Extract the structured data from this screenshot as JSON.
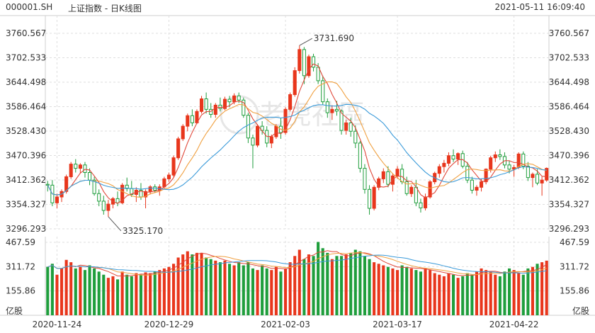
{
  "header": {
    "code": "000001.SH",
    "name": "上证指数 - 日K线图",
    "datetime": "2021-05-11 16:09:40"
  },
  "watermark": "老虎社區",
  "colors": {
    "up": "#e8361c",
    "down": "#1f9e3c",
    "ma5": "#e0483a",
    "ma10": "#f0a040",
    "ma20": "#3a9ad9",
    "grid": "#dedede"
  },
  "chart_data": [
    {
      "type": "candlestick",
      "name": "price",
      "y_tick_labels": [
        "3760.567",
        "3702.533",
        "3644.498",
        "3586.464",
        "3528.430",
        "3470.396",
        "3412.362",
        "3354.327",
        "3296.293"
      ],
      "ylim": [
        3296.293,
        3760.567
      ],
      "annotations": [
        {
          "label": "3731.690",
          "index": 54,
          "value": 3731.69
        },
        {
          "label": "3325.170",
          "index": 13,
          "value": 3325.17
        }
      ],
      "x_tick_labels": [
        {
          "label": "2020-11-24",
          "index": 2
        },
        {
          "label": "2020-12-29",
          "index": 26
        },
        {
          "label": "2021-02-03",
          "index": 51
        },
        {
          "label": "2021-03-17",
          "index": 75
        },
        {
          "label": "2021-04-22",
          "index": 100
        }
      ],
      "ohlc": [
        [
          3402,
          3410,
          3385,
          3400
        ],
        [
          3400,
          3412,
          3350,
          3358
        ],
        [
          3358,
          3380,
          3345,
          3372
        ],
        [
          3372,
          3390,
          3360,
          3385
        ],
        [
          3385,
          3425,
          3380,
          3420
        ],
        [
          3420,
          3455,
          3415,
          3450
        ],
        [
          3450,
          3462,
          3430,
          3440
        ],
        [
          3440,
          3452,
          3428,
          3448
        ],
        [
          3448,
          3455,
          3418,
          3430
        ],
        [
          3430,
          3440,
          3400,
          3412
        ],
        [
          3412,
          3420,
          3375,
          3380
        ],
        [
          3380,
          3390,
          3350,
          3362
        ],
        [
          3362,
          3375,
          3330,
          3340
        ],
        [
          3340,
          3365,
          3325,
          3355
        ],
        [
          3355,
          3372,
          3345,
          3368
        ],
        [
          3368,
          3385,
          3350,
          3358
        ],
        [
          3358,
          3405,
          3355,
          3400
        ],
        [
          3400,
          3418,
          3385,
          3392
        ],
        [
          3392,
          3410,
          3372,
          3378
        ],
        [
          3378,
          3395,
          3360,
          3388
        ],
        [
          3388,
          3405,
          3365,
          3372
        ],
        [
          3372,
          3390,
          3345,
          3385
        ],
        [
          3385,
          3400,
          3378,
          3396
        ],
        [
          3396,
          3402,
          3382,
          3388
        ],
        [
          3388,
          3402,
          3375,
          3396
        ],
        [
          3396,
          3420,
          3390,
          3415
        ],
        [
          3415,
          3430,
          3408,
          3424
        ],
        [
          3424,
          3470,
          3420,
          3465
        ],
        [
          3465,
          3515,
          3460,
          3510
        ],
        [
          3510,
          3545,
          3505,
          3540
        ],
        [
          3540,
          3570,
          3528,
          3565
        ],
        [
          3565,
          3580,
          3540,
          3548
        ],
        [
          3548,
          3580,
          3545,
          3575
        ],
        [
          3575,
          3612,
          3570,
          3605
        ],
        [
          3605,
          3620,
          3570,
          3580
        ],
        [
          3580,
          3595,
          3560,
          3568
        ],
        [
          3568,
          3595,
          3560,
          3590
        ],
        [
          3590,
          3608,
          3575,
          3582
        ],
        [
          3582,
          3610,
          3578,
          3604
        ],
        [
          3604,
          3612,
          3585,
          3598
        ],
        [
          3598,
          3618,
          3592,
          3612
        ],
        [
          3612,
          3620,
          3595,
          3602
        ],
        [
          3602,
          3608,
          3560,
          3566
        ],
        [
          3566,
          3572,
          3500,
          3512
        ],
        [
          3512,
          3520,
          3440,
          3495
        ],
        [
          3495,
          3545,
          3490,
          3540
        ],
        [
          3540,
          3552,
          3520,
          3530
        ],
        [
          3530,
          3540,
          3490,
          3500
        ],
        [
          3500,
          3520,
          3488,
          3515
        ],
        [
          3515,
          3545,
          3510,
          3540
        ],
        [
          3540,
          3560,
          3510,
          3525
        ],
        [
          3525,
          3585,
          3520,
          3580
        ],
        [
          3580,
          3620,
          3575,
          3615
        ],
        [
          3615,
          3680,
          3610,
          3672
        ],
        [
          3672,
          3731.69,
          3665,
          3722
        ],
        [
          3722,
          3728,
          3640,
          3660
        ],
        [
          3660,
          3710,
          3655,
          3705
        ],
        [
          3705,
          3712,
          3670,
          3680
        ],
        [
          3680,
          3690,
          3640,
          3648
        ],
        [
          3648,
          3660,
          3590,
          3598
        ],
        [
          3598,
          3606,
          3560,
          3572
        ],
        [
          3572,
          3590,
          3555,
          3580
        ],
        [
          3580,
          3600,
          3565,
          3576
        ],
        [
          3576,
          3580,
          3520,
          3530
        ],
        [
          3530,
          3555,
          3520,
          3548
        ],
        [
          3548,
          3560,
          3515,
          3528
        ],
        [
          3528,
          3542,
          3488,
          3500
        ],
        [
          3500,
          3505,
          3430,
          3440
        ],
        [
          3440,
          3450,
          3380,
          3390
        ],
        [
          3390,
          3400,
          3330,
          3345
        ],
        [
          3345,
          3400,
          3340,
          3395
        ],
        [
          3395,
          3420,
          3388,
          3415
        ],
        [
          3415,
          3440,
          3405,
          3432
        ],
        [
          3432,
          3445,
          3395,
          3402
        ],
        [
          3402,
          3428,
          3385,
          3422
        ],
        [
          3422,
          3445,
          3415,
          3438
        ],
        [
          3438,
          3450,
          3402,
          3408
        ],
        [
          3408,
          3420,
          3375,
          3380
        ],
        [
          3380,
          3400,
          3372,
          3395
        ],
        [
          3395,
          3412,
          3350,
          3358
        ],
        [
          3358,
          3368,
          3335,
          3346
        ],
        [
          3346,
          3380,
          3340,
          3372
        ],
        [
          3372,
          3412,
          3368,
          3408
        ],
        [
          3408,
          3432,
          3402,
          3428
        ],
        [
          3428,
          3450,
          3418,
          3444
        ],
        [
          3444,
          3460,
          3430,
          3452
        ],
        [
          3452,
          3478,
          3445,
          3470
        ],
        [
          3470,
          3485,
          3455,
          3462
        ],
        [
          3462,
          3478,
          3448,
          3475
        ],
        [
          3475,
          3482,
          3440,
          3445
        ],
        [
          3445,
          3455,
          3405,
          3412
        ],
        [
          3412,
          3420,
          3380,
          3388
        ],
        [
          3388,
          3400,
          3375,
          3395
        ],
        [
          3395,
          3415,
          3385,
          3408
        ],
        [
          3408,
          3440,
          3402,
          3438
        ],
        [
          3438,
          3470,
          3430,
          3465
        ],
        [
          3465,
          3480,
          3455,
          3472
        ],
        [
          3472,
          3485,
          3460,
          3468
        ],
        [
          3468,
          3478,
          3440,
          3448
        ],
        [
          3448,
          3458,
          3428,
          3438
        ],
        [
          3438,
          3448,
          3420,
          3442
        ],
        [
          3442,
          3478,
          3438,
          3474
        ],
        [
          3474,
          3480,
          3438,
          3445
        ],
        [
          3445,
          3455,
          3410,
          3418
        ],
        [
          3418,
          3430,
          3395,
          3426
        ],
        [
          3426,
          3438,
          3400,
          3405
        ],
        [
          3405,
          3420,
          3375,
          3412
        ],
        [
          3412,
          3442,
          3408,
          3440
        ]
      ]
    },
    {
      "type": "bar",
      "name": "volume",
      "y_tick_labels": [
        "467.59",
        "311.72",
        "155.86"
      ],
      "unit_label": "亿股",
      "ylim": [
        0,
        467.59
      ],
      "values": [
        310,
        330,
        260,
        300,
        355,
        340,
        300,
        310,
        290,
        320,
        300,
        280,
        260,
        240,
        250,
        230,
        280,
        260,
        250,
        270,
        260,
        275,
        270,
        280,
        290,
        300,
        310,
        330,
        370,
        390,
        410,
        390,
        400,
        400,
        370,
        360,
        350,
        340,
        350,
        330,
        320,
        340,
        320,
        340,
        300,
        290,
        320,
        300,
        290,
        310,
        280,
        300,
        340,
        380,
        420,
        360,
        390,
        380,
        470,
        430,
        400,
        360,
        380,
        380,
        390,
        400,
        420,
        410,
        380,
        360,
        340,
        330,
        320,
        310,
        300,
        290,
        320,
        310,
        300,
        290,
        280,
        300,
        290,
        270,
        260,
        250,
        270,
        260,
        240,
        250,
        270,
        260,
        280,
        300,
        290,
        280,
        260,
        250,
        280,
        300,
        290,
        270,
        260,
        300,
        310,
        330,
        340,
        350
      ],
      "colors_up": true
    }
  ]
}
